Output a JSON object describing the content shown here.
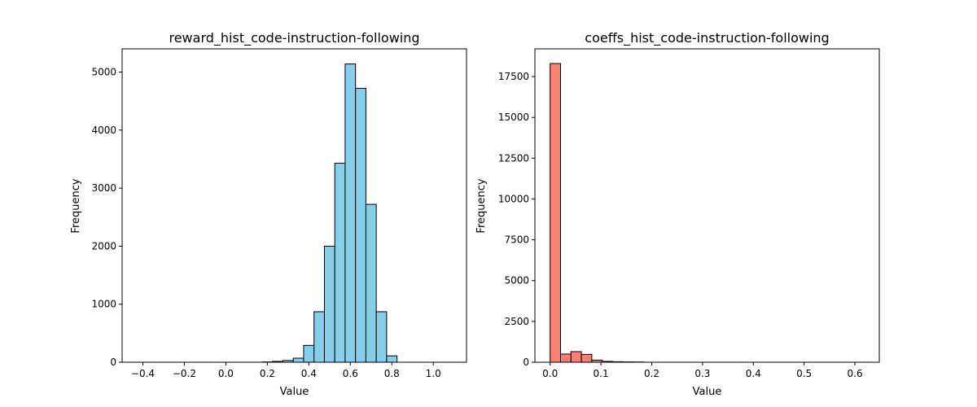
{
  "chart_data": [
    {
      "type": "bar",
      "subtype": "histogram",
      "title": "reward_hist_code-instruction-following",
      "xlabel": "Value",
      "ylabel": "Frequency",
      "color": "#87CEEB",
      "edgecolor": "#000000",
      "xlim": [
        -0.5,
        1.16
      ],
      "ylim": [
        0,
        5400
      ],
      "xticks": [
        -0.4,
        -0.2,
        0.0,
        0.2,
        0.4,
        0.6,
        0.8,
        1.0
      ],
      "xtick_labels": [
        "−0.4",
        "−0.2",
        "0.0",
        "0.2",
        "0.4",
        "0.6",
        "0.8",
        "1.0"
      ],
      "yticks": [
        0,
        1000,
        2000,
        3000,
        4000,
        5000
      ],
      "ytick_labels": [
        "0",
        "1000",
        "2000",
        "3000",
        "4000",
        "5000"
      ],
      "bin_start": -0.425,
      "bin_width": 0.05,
      "values": [
        0,
        0,
        0,
        0,
        0,
        0,
        0,
        0,
        0,
        0,
        0,
        0,
        5,
        15,
        30,
        70,
        290,
        870,
        2000,
        3430,
        5140,
        4720,
        2720,
        870,
        110,
        0,
        0,
        0,
        0,
        0,
        0,
        0
      ]
    },
    {
      "type": "bar",
      "subtype": "histogram",
      "title": "coeffs_hist_code-instruction-following",
      "xlabel": "Value",
      "ylabel": "Frequency",
      "color": "#FA8072",
      "edgecolor": "#000000",
      "xlim": [
        -0.03,
        0.648
      ],
      "ylim": [
        0,
        19200
      ],
      "xticks": [
        0.0,
        0.1,
        0.2,
        0.3,
        0.4,
        0.5,
        0.6
      ],
      "xtick_labels": [
        "0.0",
        "0.1",
        "0.2",
        "0.3",
        "0.4",
        "0.5",
        "0.6"
      ],
      "yticks": [
        0,
        2500,
        5000,
        7500,
        10000,
        12500,
        15000,
        17500
      ],
      "ytick_labels": [
        "0",
        "2500",
        "5000",
        "7500",
        "10000",
        "12500",
        "15000",
        "17500"
      ],
      "bin_start": 0.0,
      "bin_width": 0.0205,
      "values": [
        18300,
        500,
        650,
        480,
        130,
        50,
        30,
        20,
        15,
        0,
        0,
        0,
        0,
        0,
        0,
        0,
        0,
        0,
        0,
        0,
        0,
        0,
        0,
        0,
        0,
        0,
        0,
        0,
        0,
        0
      ]
    }
  ]
}
